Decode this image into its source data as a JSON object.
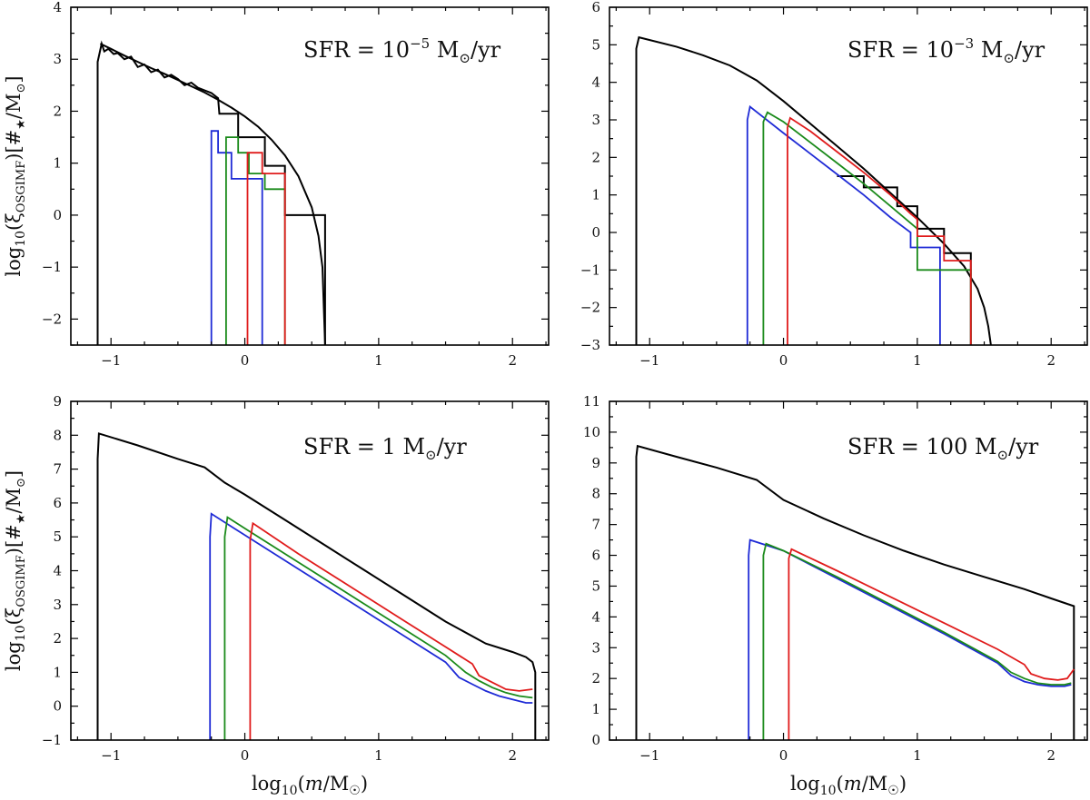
{
  "chart_data": [
    {
      "type": "line",
      "panel": "top-left",
      "annotation": {
        "prefix": "SFR = 10",
        "exp": "−5",
        "suffix": " M",
        "sun": "⊙",
        "tail": "/yr"
      },
      "xlim": [
        -1.3,
        2.27
      ],
      "ylim": [
        -2.5,
        4
      ],
      "xticks": [
        -1,
        0,
        1,
        2
      ],
      "xtick_labels": [
        "−1",
        "0",
        "1",
        "2"
      ],
      "yticks": [
        -2,
        -1,
        0,
        1,
        2,
        3,
        4
      ],
      "ytick_labels": [
        "−2",
        "−1",
        "0",
        "1",
        "2",
        "3",
        "4"
      ],
      "ylabel": {
        "pre": "log",
        "sub": "10",
        "mid": "(ξ",
        "sub2": "OSGIMF",
        "post": ")[#",
        "star": "★",
        "post2": "/M",
        "sun": "⊙",
        "end": "]"
      },
      "xlabel": null,
      "series": [
        {
          "color": "#000000",
          "kind": "line",
          "x": [
            -1.08,
            -1.0,
            -0.9,
            -0.8,
            -0.7,
            -0.6,
            -0.5,
            -0.4,
            -0.3,
            -0.2,
            -0.1,
            0.0,
            0.1,
            0.2,
            0.3,
            0.4,
            0.5,
            0.55,
            0.58,
            0.6
          ],
          "y": [
            3.3,
            3.2,
            3.07,
            2.95,
            2.83,
            2.72,
            2.6,
            2.48,
            2.36,
            2.22,
            2.07,
            1.9,
            1.7,
            1.45,
            1.15,
            0.75,
            0.15,
            -0.4,
            -1.0,
            -2.5
          ]
        },
        {
          "color": "#000000",
          "kind": "step",
          "x": [
            -1.1,
            -1.1,
            -1.07,
            -1.05,
            -1.02,
            -0.98,
            -0.95,
            -0.9,
            -0.85,
            -0.8,
            -0.75,
            -0.7,
            -0.65,
            -0.6,
            -0.55,
            -0.5,
            -0.45,
            -0.4,
            -0.35,
            -0.3,
            -0.25,
            -0.2,
            -0.19,
            -0.05,
            -0.05,
            0.15,
            0.15,
            0.3,
            0.3,
            0.5,
            0.5,
            0.6,
            0.6
          ],
          "y": [
            -2.5,
            2.95,
            3.3,
            3.15,
            3.2,
            3.1,
            3.12,
            3.0,
            3.05,
            2.85,
            2.9,
            2.75,
            2.8,
            2.65,
            2.7,
            2.62,
            2.5,
            2.55,
            2.45,
            2.4,
            2.35,
            2.25,
            1.95,
            1.95,
            1.5,
            1.5,
            0.95,
            0.95,
            0.0,
            0.0,
            0.0,
            0.0,
            -2.5
          ]
        },
        {
          "color": "#1f2bd6",
          "kind": "step",
          "x": [
            -0.25,
            -0.25,
            -0.2,
            -0.2,
            -0.1,
            -0.1,
            0.0,
            0.0,
            0.13,
            0.13
          ],
          "y": [
            -2.5,
            1.62,
            1.62,
            1.2,
            1.2,
            0.7,
            0.7,
            0.7,
            0.7,
            -2.5
          ]
        },
        {
          "color": "#1a8a1a",
          "kind": "step",
          "x": [
            -0.14,
            -0.14,
            -0.05,
            -0.05,
            0.03,
            0.03,
            0.15,
            0.15,
            0.3,
            0.3
          ],
          "y": [
            -2.5,
            1.5,
            1.5,
            1.2,
            1.2,
            0.8,
            0.8,
            0.5,
            0.5,
            -2.5
          ]
        },
        {
          "color": "#e01b1b",
          "kind": "step",
          "x": [
            0.02,
            0.02,
            0.13,
            0.13,
            0.3,
            0.3
          ],
          "y": [
            -2.5,
            1.2,
            1.2,
            0.8,
            0.8,
            -2.5
          ]
        }
      ]
    },
    {
      "type": "line",
      "panel": "top-right",
      "annotation": {
        "prefix": "SFR = 10",
        "exp": "−3",
        "suffix": " M",
        "sun": "⊙",
        "tail": "/yr"
      },
      "xlim": [
        -1.3,
        2.27
      ],
      "ylim": [
        -3,
        6
      ],
      "xticks": [
        -1,
        0,
        1,
        2
      ],
      "xtick_labels": [
        "−1",
        "0",
        "1",
        "2"
      ],
      "yticks": [
        -3,
        -2,
        -1,
        0,
        1,
        2,
        3,
        4,
        5,
        6
      ],
      "ytick_labels": [
        "−3",
        "−2",
        "−1",
        "0",
        "1",
        "2",
        "3",
        "4",
        "5",
        "6"
      ],
      "ylabel": null,
      "xlabel": null,
      "series": [
        {
          "color": "#000000",
          "kind": "line",
          "x": [
            -1.1,
            -1.1,
            -1.08,
            -0.8,
            -0.6,
            -0.4,
            -0.2,
            0.0,
            0.2,
            0.4,
            0.6,
            0.8,
            1.0,
            1.2,
            1.35,
            1.45,
            1.5,
            1.53,
            1.55
          ],
          "y": [
            -3,
            4.9,
            5.2,
            4.95,
            4.72,
            4.45,
            4.05,
            3.5,
            2.9,
            2.3,
            1.7,
            1.05,
            0.4,
            -0.3,
            -0.9,
            -1.5,
            -2.0,
            -2.5,
            -3.0
          ]
        },
        {
          "color": "#000000",
          "kind": "step",
          "x": [
            0.4,
            0.4,
            0.6,
            0.6,
            0.85,
            0.85,
            1.0,
            1.0,
            1.2,
            1.2,
            1.4,
            1.4
          ],
          "y": [
            1.5,
            1.5,
            1.5,
            1.2,
            1.2,
            0.7,
            0.7,
            0.1,
            0.1,
            -0.55,
            -0.55,
            -3.0
          ]
        },
        {
          "color": "#1f2bd6",
          "kind": "line",
          "x": [
            -0.27,
            -0.27,
            -0.25,
            0.0,
            0.2,
            0.4,
            0.6,
            0.8,
            0.95,
            0.95,
            1.17,
            1.17
          ],
          "y": [
            -3,
            3.0,
            3.35,
            2.65,
            2.1,
            1.55,
            1.0,
            0.4,
            0.0,
            -0.4,
            -0.4,
            -3.0
          ]
        },
        {
          "color": "#1a8a1a",
          "kind": "line",
          "x": [
            -0.15,
            -0.15,
            -0.12,
            0.0,
            0.2,
            0.4,
            0.6,
            0.8,
            0.95,
            1.0,
            1.0,
            1.4,
            1.4
          ],
          "y": [
            -3,
            2.95,
            3.2,
            2.95,
            2.4,
            1.85,
            1.3,
            0.7,
            0.25,
            0.1,
            -1.0,
            -1.0,
            -3.0
          ]
        },
        {
          "color": "#e01b1b",
          "kind": "line",
          "x": [
            0.03,
            0.03,
            0.05,
            0.2,
            0.4,
            0.6,
            0.8,
            0.95,
            1.0,
            1.0,
            1.2,
            1.2,
            1.4,
            1.4
          ],
          "y": [
            -3,
            2.8,
            3.05,
            2.7,
            2.15,
            1.6,
            1.0,
            0.5,
            0.35,
            -0.1,
            -0.1,
            -0.75,
            -0.75,
            -3.0
          ]
        }
      ]
    },
    {
      "type": "line",
      "panel": "bottom-left",
      "annotation": {
        "prefix": "SFR = 1",
        "exp": "",
        "suffix": " M",
        "sun": "⊙",
        "tail": "/yr"
      },
      "xlim": [
        -1.3,
        2.27
      ],
      "ylim": [
        -1,
        9
      ],
      "xticks": [
        -1,
        0,
        1,
        2
      ],
      "xtick_labels": [
        "−1",
        "0",
        "1",
        "2"
      ],
      "yticks": [
        -1,
        0,
        1,
        2,
        3,
        4,
        5,
        6,
        7,
        8,
        9
      ],
      "ytick_labels": [
        "−1",
        "0",
        "1",
        "2",
        "3",
        "4",
        "5",
        "6",
        "7",
        "8",
        "9"
      ],
      "ylabel": {
        "pre": "log",
        "sub": "10",
        "mid": "(ξ",
        "sub2": "OSGIMF",
        "post": ")[#",
        "star": "★",
        "post2": "/M",
        "sun": "⊙",
        "end": "]"
      },
      "xlabel": {
        "pre": "log",
        "sub": "10",
        "mid": "(",
        "italic": "m",
        "post": "/M",
        "sun": "☉",
        "end": ")"
      },
      "series": [
        {
          "color": "#000000",
          "kind": "line",
          "x": [
            -1.1,
            -1.1,
            -1.09,
            -0.8,
            -0.5,
            -0.3,
            -0.15,
            0.0,
            0.3,
            0.6,
            0.9,
            1.2,
            1.5,
            1.8,
            2.0,
            2.1,
            2.15,
            2.17,
            2.17
          ],
          "y": [
            -1,
            7.3,
            8.05,
            7.7,
            7.3,
            7.05,
            6.6,
            6.25,
            5.5,
            4.75,
            4.0,
            3.25,
            2.5,
            1.85,
            1.6,
            1.45,
            1.3,
            1.0,
            -1.0
          ]
        },
        {
          "color": "#1f2bd6",
          "kind": "line",
          "x": [
            -0.26,
            -0.26,
            -0.25,
            0.0,
            0.4,
            0.8,
            1.2,
            1.5,
            1.6,
            1.7,
            1.8,
            1.9,
            2.0,
            2.1,
            2.15
          ],
          "y": [
            -1,
            5.0,
            5.68,
            5.05,
            4.05,
            3.05,
            2.05,
            1.3,
            0.85,
            0.65,
            0.45,
            0.3,
            0.2,
            0.1,
            0.1
          ]
        },
        {
          "color": "#1a8a1a",
          "kind": "line",
          "x": [
            -0.15,
            -0.15,
            -0.13,
            0.0,
            0.4,
            0.8,
            1.2,
            1.5,
            1.65,
            1.75,
            1.85,
            1.95,
            2.05,
            2.15
          ],
          "y": [
            -1,
            5.0,
            5.58,
            5.25,
            4.25,
            3.25,
            2.25,
            1.5,
            1.0,
            0.75,
            0.55,
            0.4,
            0.3,
            0.25
          ]
        },
        {
          "color": "#e01b1b",
          "kind": "line",
          "x": [
            0.04,
            0.04,
            0.06,
            0.4,
            0.8,
            1.2,
            1.5,
            1.7,
            1.75,
            1.85,
            1.95,
            2.05,
            2.15
          ],
          "y": [
            -1,
            4.9,
            5.4,
            4.5,
            3.5,
            2.5,
            1.75,
            1.25,
            0.9,
            0.7,
            0.5,
            0.45,
            0.5
          ]
        }
      ]
    },
    {
      "type": "line",
      "panel": "bottom-right",
      "annotation": {
        "prefix": "SFR = 100",
        "exp": "",
        "suffix": " M",
        "sun": "⊙",
        "tail": "/yr"
      },
      "xlim": [
        -1.3,
        2.27
      ],
      "ylim": [
        0,
        11
      ],
      "xticks": [
        -1,
        0,
        1,
        2
      ],
      "xtick_labels": [
        "−1",
        "0",
        "1",
        "2"
      ],
      "yticks": [
        0,
        1,
        2,
        3,
        4,
        5,
        6,
        7,
        8,
        9,
        10,
        11
      ],
      "ytick_labels": [
        "0",
        "1",
        "2",
        "3",
        "4",
        "5",
        "6",
        "7",
        "8",
        "9",
        "10",
        "11"
      ],
      "ylabel": null,
      "xlabel": {
        "pre": "log",
        "sub": "10",
        "mid": "(",
        "italic": "m",
        "post": "/M",
        "sun": "☉",
        "end": ")"
      },
      "series": [
        {
          "color": "#000000",
          "kind": "line",
          "x": [
            -1.1,
            -1.1,
            -1.09,
            -0.8,
            -0.5,
            -0.2,
            0.0,
            0.3,
            0.6,
            0.9,
            1.2,
            1.5,
            1.8,
            2.0,
            2.17,
            2.17
          ],
          "y": [
            0,
            9.2,
            9.55,
            9.2,
            8.85,
            8.45,
            7.8,
            7.2,
            6.65,
            6.15,
            5.7,
            5.3,
            4.9,
            4.6,
            4.35,
            0
          ]
        },
        {
          "color": "#1f2bd6",
          "kind": "line",
          "x": [
            -0.26,
            -0.26,
            -0.25,
            0.0,
            0.4,
            0.8,
            1.2,
            1.6,
            1.7,
            1.8,
            1.9,
            2.0,
            2.1,
            2.15
          ],
          "y": [
            0,
            6.0,
            6.5,
            6.15,
            5.25,
            4.35,
            3.45,
            2.5,
            2.1,
            1.9,
            1.8,
            1.75,
            1.75,
            1.8
          ]
        },
        {
          "color": "#1a8a1a",
          "kind": "line",
          "x": [
            -0.15,
            -0.15,
            -0.13,
            0.0,
            0.4,
            0.8,
            1.2,
            1.6,
            1.7,
            1.8,
            1.9,
            2.0,
            2.1,
            2.15
          ],
          "y": [
            0,
            6.0,
            6.38,
            6.15,
            5.3,
            4.4,
            3.5,
            2.55,
            2.2,
            2.0,
            1.85,
            1.8,
            1.8,
            1.85
          ]
        },
        {
          "color": "#e01b1b",
          "kind": "line",
          "x": [
            0.04,
            0.04,
            0.06,
            0.4,
            0.8,
            1.2,
            1.6,
            1.8,
            1.85,
            1.95,
            2.05,
            2.12,
            2.17
          ],
          "y": [
            0,
            5.9,
            6.2,
            5.5,
            4.65,
            3.8,
            2.95,
            2.45,
            2.15,
            2.0,
            1.95,
            2.0,
            2.3
          ]
        }
      ]
    }
  ]
}
